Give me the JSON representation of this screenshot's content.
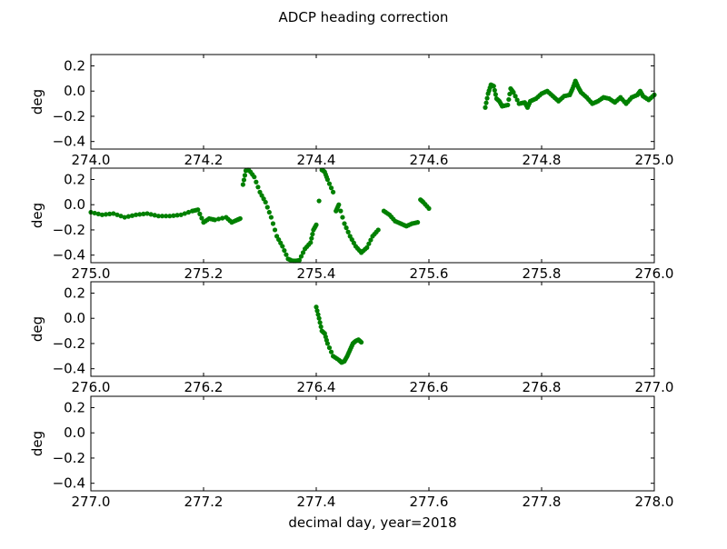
{
  "chart_data": {
    "type": "scatter",
    "title": "ADCP heading correction",
    "xlabel": "decimal day, year=2018",
    "marker_color": "#008000",
    "panels": [
      {
        "ylabel": "deg",
        "xlim": [
          274.0,
          275.0
        ],
        "ylim": [
          -0.46,
          0.29
        ],
        "xticks": [
          "274.0",
          "274.2",
          "274.4",
          "274.6",
          "274.8",
          "275.0"
        ],
        "yticks": [
          "0.2",
          "0.0",
          "−0.2",
          "−0.4"
        ],
        "x": [
          274.7,
          274.705,
          274.71,
          274.715,
          274.72,
          274.725,
          274.73,
          274.74,
          274.745,
          274.75,
          274.76,
          274.77,
          274.775,
          274.78,
          274.79,
          274.8,
          274.81,
          274.82,
          274.83,
          274.84,
          274.85,
          274.855,
          274.86,
          274.865,
          274.87,
          274.88,
          274.89,
          274.9,
          274.91,
          274.92,
          274.93,
          274.94,
          274.95,
          274.96,
          274.97,
          274.975,
          274.98,
          274.99,
          275.0
        ],
        "y": [
          -0.13,
          -0.02,
          0.05,
          0.04,
          -0.06,
          -0.08,
          -0.12,
          -0.11,
          0.02,
          -0.01,
          -0.1,
          -0.09,
          -0.13,
          -0.08,
          -0.06,
          -0.02,
          0.0,
          -0.04,
          -0.08,
          -0.04,
          -0.03,
          0.02,
          0.08,
          0.03,
          -0.01,
          -0.05,
          -0.1,
          -0.08,
          -0.05,
          -0.06,
          -0.09,
          -0.05,
          -0.1,
          -0.05,
          -0.03,
          0.0,
          -0.04,
          -0.07,
          -0.03
        ]
      },
      {
        "ylabel": "deg",
        "xlim": [
          275.0,
          276.0
        ],
        "ylim": [
          -0.46,
          0.29
        ],
        "xticks": [
          "275.0",
          "275.2",
          "275.4",
          "275.6",
          "275.8",
          "276.0"
        ],
        "yticks": [
          "0.2",
          "0.0",
          "−0.2",
          "−0.4"
        ],
        "x": [
          275.0,
          275.02,
          275.04,
          275.06,
          275.08,
          275.1,
          275.12,
          275.14,
          275.16,
          275.18,
          275.19,
          275.2,
          275.21,
          275.22,
          275.24,
          275.25,
          275.26,
          275.265,
          275.27,
          275.275,
          275.28,
          275.29,
          275.3,
          275.31,
          275.32,
          275.33,
          275.34,
          275.35,
          275.36,
          275.37,
          275.38,
          275.39,
          275.395,
          275.4,
          275.405,
          275.41,
          275.415,
          275.42,
          275.43,
          275.435,
          275.44,
          275.45,
          275.46,
          275.47,
          275.48,
          275.49,
          275.5,
          275.51,
          275.52,
          275.53,
          275.54,
          275.55,
          275.56,
          275.57,
          275.58,
          275.585,
          275.59,
          275.6
        ],
        "y": [
          -0.06,
          -0.08,
          -0.07,
          -0.1,
          -0.08,
          -0.07,
          -0.09,
          -0.09,
          -0.08,
          -0.05,
          -0.04,
          -0.14,
          -0.11,
          -0.12,
          -0.1,
          -0.14,
          -0.12,
          -0.11,
          0.16,
          0.27,
          0.28,
          0.22,
          0.1,
          0.02,
          -0.1,
          -0.25,
          -0.33,
          -0.43,
          -0.45,
          -0.44,
          -0.35,
          -0.3,
          -0.2,
          -0.16,
          0.03,
          0.28,
          0.26,
          0.2,
          0.1,
          -0.05,
          0.0,
          -0.15,
          -0.25,
          -0.33,
          -0.38,
          -0.34,
          -0.25,
          -0.2,
          -0.05,
          -0.08,
          -0.13,
          -0.15,
          -0.17,
          -0.15,
          -0.14,
          0.04,
          0.02,
          -0.03
        ]
      },
      {
        "ylabel": "deg",
        "xlim": [
          276.0,
          277.0
        ],
        "ylim": [
          -0.46,
          0.29
        ],
        "xticks": [
          "276.0",
          "276.2",
          "276.4",
          "276.6",
          "276.8",
          "277.0"
        ],
        "yticks": [
          "0.2",
          "0.0",
          "−0.2",
          "−0.4"
        ],
        "x": [
          276.4,
          276.405,
          276.41,
          276.415,
          276.42,
          276.43,
          276.44,
          276.445,
          276.45,
          276.455,
          276.46,
          276.465,
          276.47,
          276.475,
          276.48
        ],
        "y": [
          0.09,
          0.0,
          -0.1,
          -0.12,
          -0.2,
          -0.3,
          -0.33,
          -0.35,
          -0.34,
          -0.3,
          -0.25,
          -0.2,
          -0.18,
          -0.17,
          -0.19
        ]
      },
      {
        "ylabel": "deg",
        "xlim": [
          277.0,
          278.0
        ],
        "ylim": [
          -0.46,
          0.29
        ],
        "xticks": [
          "277.0",
          "277.2",
          "277.4",
          "277.6",
          "277.8",
          "278.0"
        ],
        "yticks": [
          "0.2",
          "0.0",
          "−0.2",
          "−0.4"
        ],
        "x": [],
        "y": []
      }
    ]
  }
}
